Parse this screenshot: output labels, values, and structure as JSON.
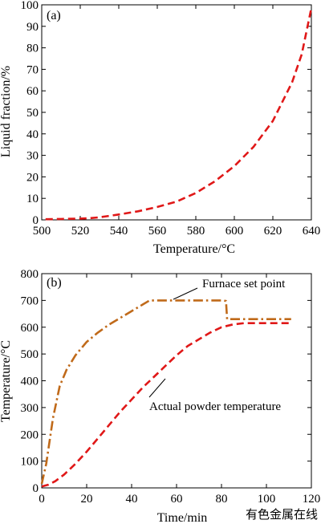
{
  "watermark": "有色金属在线",
  "colors": {
    "red": "#e01818",
    "orange": "#c06a1a"
  },
  "chart_data": [
    {
      "type": "line",
      "panel": "(a)",
      "xlabel": "Temperature/°C",
      "ylabel": "Liquid fraction/%",
      "xlim": [
        500,
        640
      ],
      "ylim": [
        0,
        100
      ],
      "xticks": [
        500,
        520,
        540,
        560,
        580,
        600,
        620,
        640
      ],
      "yticks": [
        0,
        10,
        20,
        30,
        40,
        50,
        60,
        70,
        80,
        90,
        100
      ],
      "grid": false,
      "series": [
        {
          "style": "dashed",
          "color": "#e01818",
          "x": [
            502,
            510,
            520,
            525,
            530,
            540,
            550,
            560,
            570,
            580,
            590,
            600,
            610,
            620,
            630,
            635,
            640
          ],
          "y": [
            0.3,
            0.4,
            0.6,
            0.8,
            1.2,
            2.5,
            4.0,
            6.0,
            8.5,
            12.5,
            18.0,
            25.0,
            34.0,
            46.0,
            64.0,
            77.0,
            98.5
          ]
        }
      ]
    },
    {
      "type": "line",
      "panel": "(b)",
      "xlabel": "Time/min",
      "ylabel": "Temperature/°C",
      "xlim": [
        0,
        120
      ],
      "ylim": [
        0,
        800
      ],
      "xticks": [
        0,
        20,
        40,
        60,
        80,
        100,
        120
      ],
      "yticks": [
        0,
        100,
        200,
        300,
        400,
        500,
        600,
        700,
        800
      ],
      "grid": false,
      "series": [
        {
          "name": "Furnace set point",
          "style": "dash-dot",
          "color": "#c06a1a",
          "x": [
            0,
            2,
            5,
            8,
            11,
            15,
            20,
            25,
            30,
            35,
            40,
            45,
            48,
            50,
            60,
            70,
            80,
            82,
            82.5,
            85,
            90,
            100,
            111
          ],
          "y": [
            15,
            90,
            260,
            380,
            440,
            495,
            545,
            580,
            610,
            635,
            660,
            685,
            700,
            700,
            700,
            700,
            700,
            698,
            630,
            630,
            630,
            630,
            630
          ]
        },
        {
          "name": "Actual powder temperature",
          "style": "dashed",
          "color": "#e01818",
          "x": [
            0,
            3,
            6,
            10,
            15,
            20,
            25,
            30,
            35,
            40,
            45,
            50,
            55,
            60,
            65,
            70,
            75,
            80,
            85,
            90,
            100,
            111
          ],
          "y": [
            5,
            12,
            25,
            50,
            90,
            135,
            185,
            235,
            285,
            330,
            375,
            415,
            455,
            495,
            530,
            555,
            580,
            600,
            610,
            615,
            615,
            615
          ]
        }
      ],
      "annotations": [
        "Furnace set point",
        "Actual powder temperature"
      ]
    }
  ]
}
